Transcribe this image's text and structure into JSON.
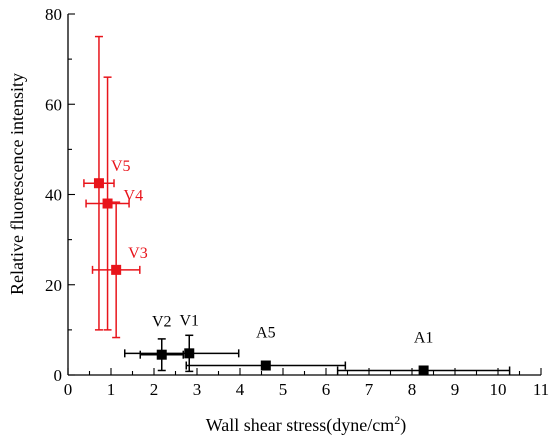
{
  "chart_data": {
    "type": "scatter",
    "title": "",
    "xlabel": "Wall shear stress(dyne/cm",
    "xlabel_sup": "2",
    "xlabel_end": ")",
    "ylabel": "Relative fluorescence intensity",
    "xlim": [
      0,
      11
    ],
    "ylim": [
      0,
      80
    ],
    "x_ticks": [
      0,
      1,
      2,
      3,
      4,
      5,
      6,
      7,
      8,
      9,
      10,
      11
    ],
    "x_tick_labels": [
      "0",
      "1",
      "2",
      "3",
      "4",
      "5",
      "6",
      "7",
      "8",
      "9",
      "10",
      "11"
    ],
    "y_ticks": [
      0,
      20,
      40,
      60,
      80
    ],
    "y_tick_labels": [
      "0",
      "20",
      "40",
      "60",
      "80"
    ],
    "grid": false,
    "series": [
      {
        "color": "#e8141b",
        "points": [
          {
            "label": "V5",
            "x": 0.72,
            "y": 42.5,
            "x_err": [
              0.35,
              0.35
            ],
            "y_err": [
              32.5,
              32.5
            ],
            "label_pos": "upper-right"
          },
          {
            "label": "V4",
            "x": 0.92,
            "y": 38.0,
            "x_err": [
              0.5,
              0.5
            ],
            "y_err": [
              28.0,
              28.0
            ],
            "label_pos": "right"
          },
          {
            "label": "V3",
            "x": 1.12,
            "y": 23.3,
            "x_err": [
              0.55,
              0.55
            ],
            "y_err": [
              15.0,
              15.0
            ],
            "label_pos": "upper-right"
          }
        ]
      },
      {
        "color": "#000000",
        "points": [
          {
            "label": "V2",
            "x": 2.18,
            "y": 4.5,
            "x_err": [
              0.5,
              0.5
            ],
            "y_err": [
              3.5,
              3.5
            ],
            "label_pos": "above"
          },
          {
            "label": "V1",
            "x": 2.82,
            "y": 4.8,
            "x_err": [
              1.5,
              1.15
            ],
            "y_err": [
              4.0,
              4.0
            ],
            "label_pos": "above"
          },
          {
            "label": "A5",
            "x": 4.6,
            "y": 2.1,
            "x_err": [
              1.85,
              1.85
            ],
            "y_err": [
              0,
              0
            ],
            "label_pos": "above"
          },
          {
            "label": "A1",
            "x": 8.27,
            "y": 1.0,
            "x_err": [
              2.0,
              2.0
            ],
            "y_err": [
              0,
              0
            ],
            "label_pos": "above"
          }
        ]
      }
    ]
  }
}
